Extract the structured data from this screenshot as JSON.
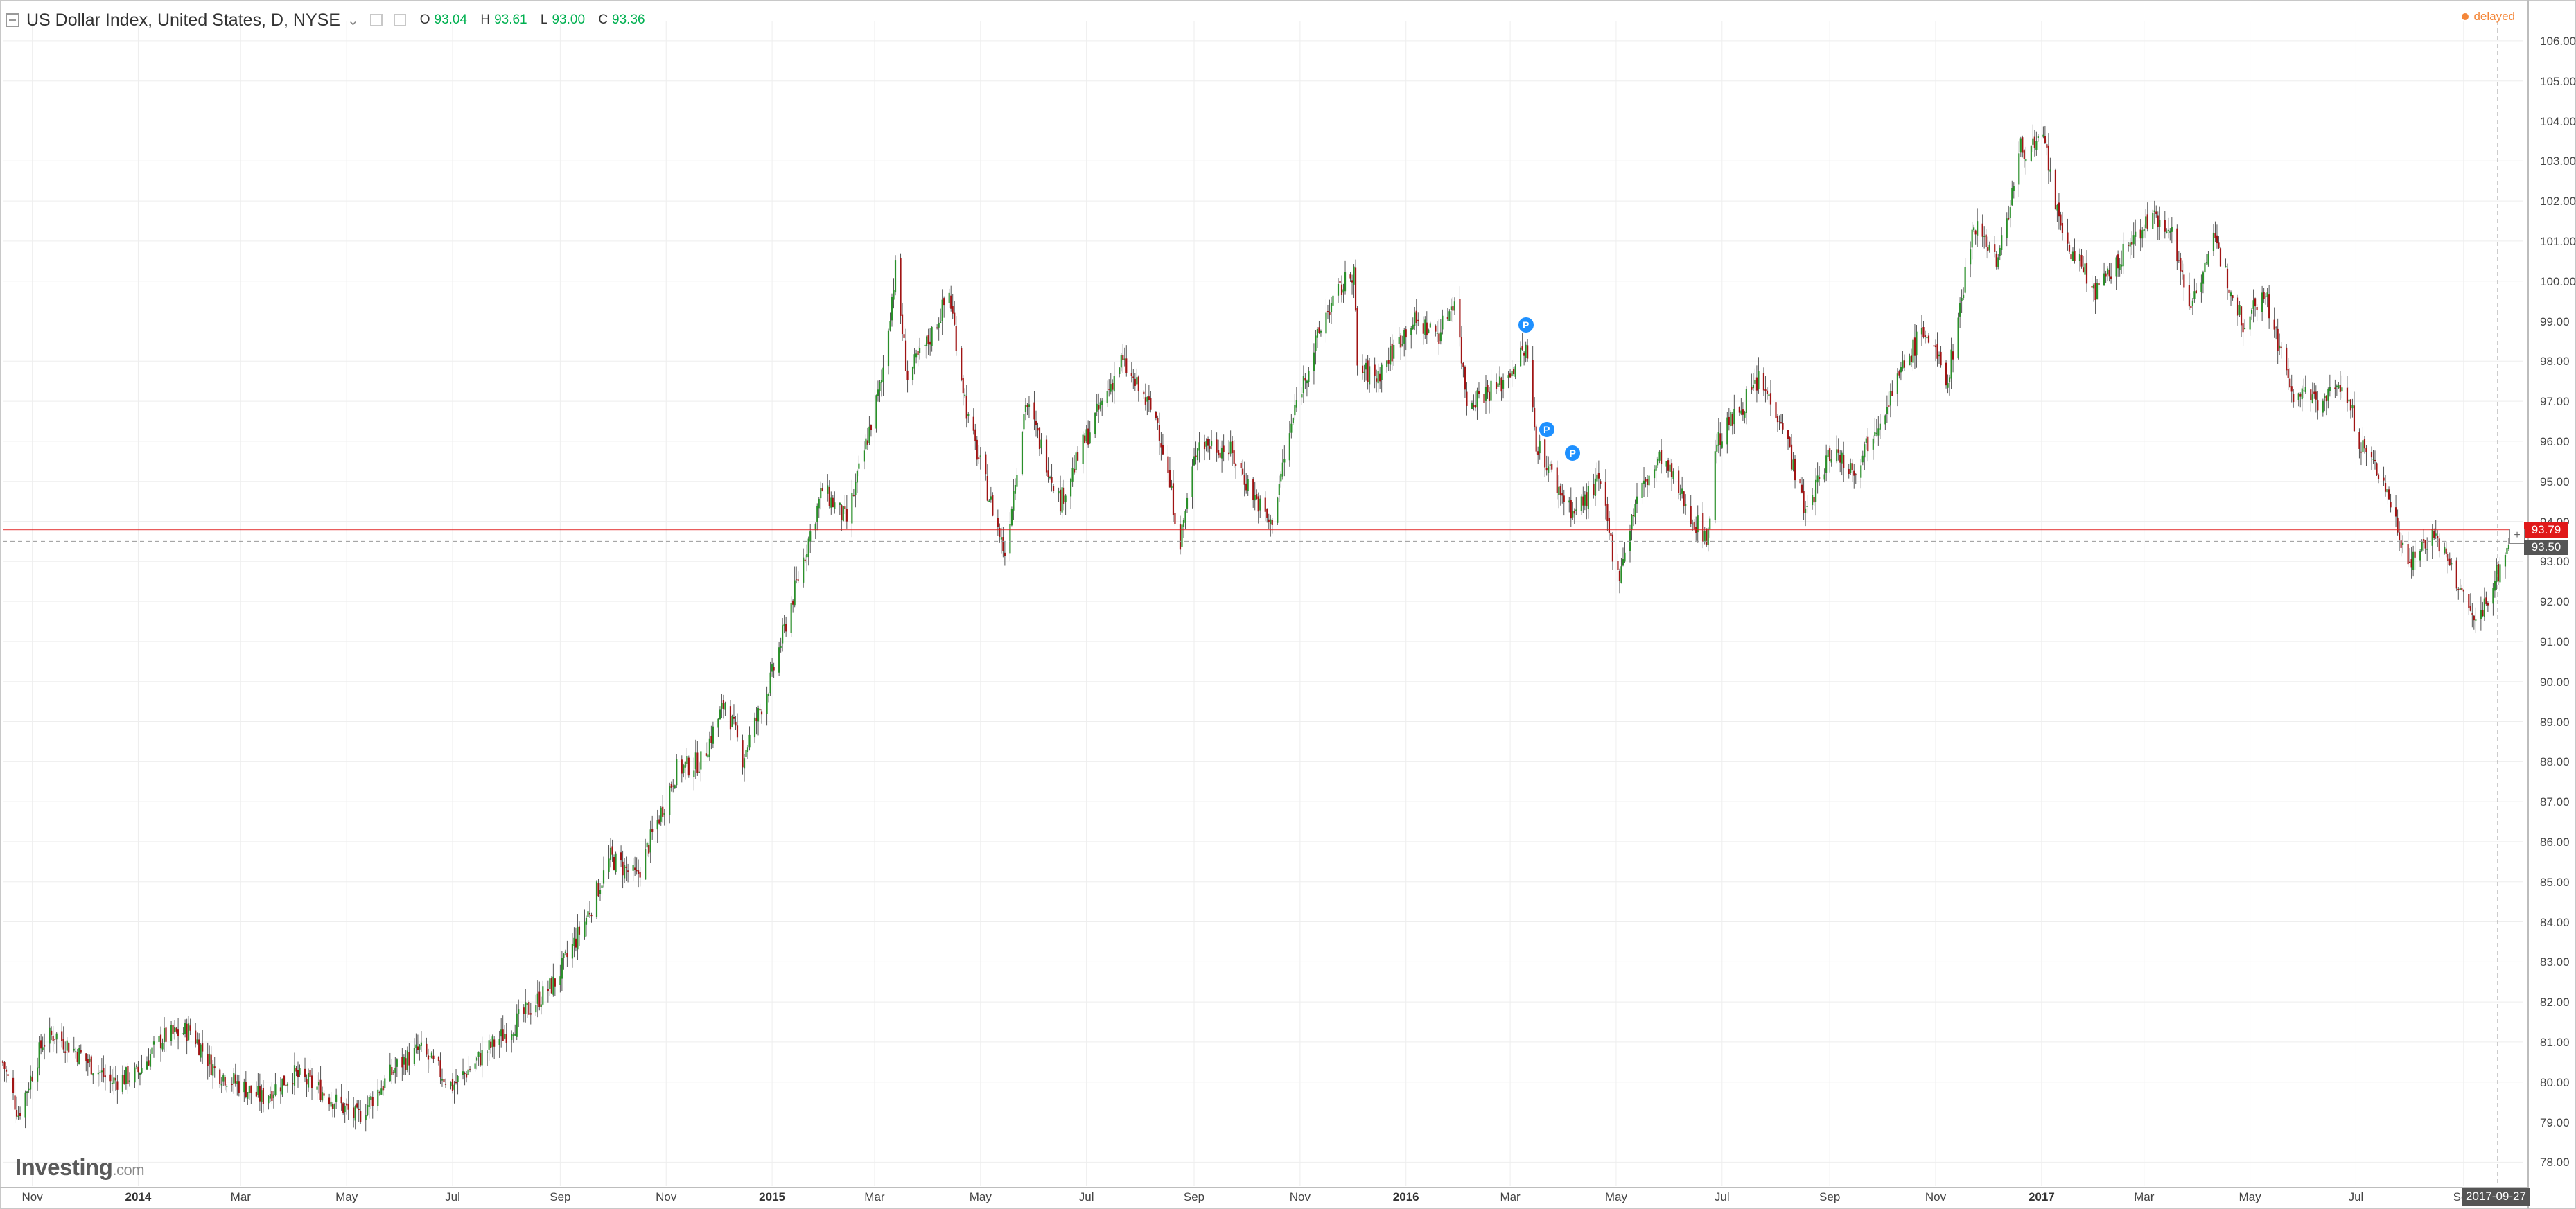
{
  "header": {
    "title": "US Dollar Index, United States, D, NYSE",
    "ohlc": {
      "o_label": "O",
      "o": "93.04",
      "h_label": "H",
      "h": "93.61",
      "l_label": "L",
      "l": "93.00",
      "c_label": "C",
      "c": "93.36"
    },
    "status": "delayed"
  },
  "brand": {
    "name": "Investing",
    "suffix": ".com"
  },
  "colors": {
    "up": "#2a8f2a",
    "down": "#a01414",
    "wick": "#555555",
    "grid": "#eeeeee",
    "current_price": "#e0191a",
    "last_price": "#555555",
    "delayed": "#f4873a",
    "event": "#1e90ff"
  },
  "price_tags": {
    "current": "93.79",
    "last": "93.50"
  },
  "date_tag": "2017-09-27",
  "event_markers": [
    {
      "label": "P",
      "date": "2016-03-10",
      "price": 98.9
    },
    {
      "label": "P",
      "date": "2016-03-22",
      "price": 96.3
    },
    {
      "label": "P",
      "date": "2016-04-06",
      "price": 95.7
    }
  ],
  "chart_data": {
    "type": "candlestick",
    "title": "US Dollar Index, United States, D, NYSE",
    "xlabel": "",
    "ylabel": "",
    "ylim": [
      77.4,
      106.5
    ],
    "yticks": [
      "78.00",
      "79.00",
      "80.00",
      "81.00",
      "82.00",
      "83.00",
      "84.00",
      "85.00",
      "86.00",
      "87.00",
      "88.00",
      "89.00",
      "90.00",
      "91.00",
      "92.00",
      "93.00",
      "94.00",
      "95.00",
      "96.00",
      "97.00",
      "98.00",
      "99.00",
      "100.00",
      "101.00",
      "102.00",
      "103.00",
      "104.00",
      "105.00",
      "106.00"
    ],
    "xlim": [
      "2013-10-15",
      "2017-10-05"
    ],
    "xticks": [
      {
        "label": "Nov",
        "date": "2013-11-01",
        "major": false
      },
      {
        "label": "2014",
        "date": "2014-01-01",
        "major": true
      },
      {
        "label": "Mar",
        "date": "2014-03-01",
        "major": false
      },
      {
        "label": "May",
        "date": "2014-05-01",
        "major": false
      },
      {
        "label": "Jul",
        "date": "2014-07-01",
        "major": false
      },
      {
        "label": "Sep",
        "date": "2014-09-01",
        "major": false
      },
      {
        "label": "Nov",
        "date": "2014-11-01",
        "major": false
      },
      {
        "label": "2015",
        "date": "2015-01-01",
        "major": true
      },
      {
        "label": "Mar",
        "date": "2015-03-01",
        "major": false
      },
      {
        "label": "May",
        "date": "2015-05-01",
        "major": false
      },
      {
        "label": "Jul",
        "date": "2015-07-01",
        "major": false
      },
      {
        "label": "Sep",
        "date": "2015-09-01",
        "major": false
      },
      {
        "label": "Nov",
        "date": "2015-11-01",
        "major": false
      },
      {
        "label": "2016",
        "date": "2016-01-01",
        "major": true
      },
      {
        "label": "Mar",
        "date": "2016-03-01",
        "major": false
      },
      {
        "label": "May",
        "date": "2016-05-01",
        "major": false
      },
      {
        "label": "Jul",
        "date": "2016-07-01",
        "major": false
      },
      {
        "label": "Sep",
        "date": "2016-09-01",
        "major": false
      },
      {
        "label": "Nov",
        "date": "2016-11-01",
        "major": false
      },
      {
        "label": "2017",
        "date": "2017-01-01",
        "major": true
      },
      {
        "label": "Mar",
        "date": "2017-03-01",
        "major": false
      },
      {
        "label": "May",
        "date": "2017-05-01",
        "major": false
      },
      {
        "label": "Jul",
        "date": "2017-07-01",
        "major": false
      },
      {
        "label": "Sep",
        "date": "2017-09-01",
        "major": false
      }
    ],
    "series": [
      {
        "name": "",
        "points": [
          [
            "2013-10-15",
            80.5
          ],
          [
            "2013-10-24",
            79.2
          ],
          [
            "2013-11-07",
            81.0
          ],
          [
            "2013-11-14",
            81.2
          ],
          [
            "2013-11-28",
            80.7
          ],
          [
            "2013-12-16",
            80.0
          ],
          [
            "2013-12-31",
            80.2
          ],
          [
            "2014-01-15",
            81.1
          ],
          [
            "2014-01-31",
            81.3
          ],
          [
            "2014-02-14",
            80.3
          ],
          [
            "2014-03-13",
            79.6
          ],
          [
            "2014-03-31",
            80.2
          ],
          [
            "2014-04-16",
            79.8
          ],
          [
            "2014-05-07",
            79.1
          ],
          [
            "2014-05-30",
            80.4
          ],
          [
            "2014-06-12",
            80.8
          ],
          [
            "2014-07-01",
            79.9
          ],
          [
            "2014-07-21",
            80.8
          ],
          [
            "2014-08-07",
            81.5
          ],
          [
            "2014-08-29",
            82.5
          ],
          [
            "2014-09-15",
            84.0
          ],
          [
            "2014-09-30",
            85.6
          ],
          [
            "2014-10-15",
            85.1
          ],
          [
            "2014-11-07",
            87.8
          ],
          [
            "2014-11-21",
            88.0
          ],
          [
            "2014-12-05",
            89.5
          ],
          [
            "2014-12-15",
            88.1
          ],
          [
            "2014-12-31",
            90.0
          ],
          [
            "2015-01-16",
            92.6
          ],
          [
            "2015-01-30",
            94.8
          ],
          [
            "2015-02-13",
            94.0
          ],
          [
            "2015-03-05",
            97.5
          ],
          [
            "2015-03-13",
            100.3
          ],
          [
            "2015-03-20",
            97.6
          ],
          [
            "2015-04-01",
            98.5
          ],
          [
            "2015-04-13",
            99.7
          ],
          [
            "2015-04-24",
            96.5
          ],
          [
            "2015-05-15",
            93.2
          ],
          [
            "2015-05-27",
            97.0
          ],
          [
            "2015-06-16",
            94.5
          ],
          [
            "2015-06-30",
            96.0
          ],
          [
            "2015-07-21",
            98.0
          ],
          [
            "2015-08-11",
            96.5
          ],
          [
            "2015-08-24",
            93.5
          ],
          [
            "2015-09-03",
            96.0
          ],
          [
            "2015-09-21",
            95.8
          ],
          [
            "2015-10-15",
            93.9
          ],
          [
            "2015-10-30",
            97.0
          ],
          [
            "2015-11-16",
            99.2
          ],
          [
            "2015-12-02",
            100.3
          ],
          [
            "2015-12-04",
            97.8
          ],
          [
            "2015-12-15",
            97.6
          ],
          [
            "2016-01-04",
            99.0
          ],
          [
            "2016-01-20",
            98.7
          ],
          [
            "2016-01-29",
            99.6
          ],
          [
            "2016-02-05",
            97.0
          ],
          [
            "2016-02-24",
            97.4
          ],
          [
            "2016-03-10",
            98.3
          ],
          [
            "2016-03-16",
            96.0
          ],
          [
            "2016-03-29",
            94.8
          ],
          [
            "2016-04-07",
            94.2
          ],
          [
            "2016-04-21",
            95.0
          ],
          [
            "2016-05-02",
            92.6
          ],
          [
            "2016-05-13",
            94.6
          ],
          [
            "2016-05-27",
            95.6
          ],
          [
            "2016-06-15",
            94.0
          ],
          [
            "2016-06-23",
            93.6
          ],
          [
            "2016-06-27",
            95.9
          ],
          [
            "2016-07-22",
            97.5
          ],
          [
            "2016-08-04",
            96.6
          ],
          [
            "2016-08-18",
            94.2
          ],
          [
            "2016-09-02",
            95.8
          ],
          [
            "2016-09-15",
            95.3
          ],
          [
            "2016-10-13",
            97.8
          ],
          [
            "2016-10-25",
            98.8
          ],
          [
            "2016-11-08",
            97.5
          ],
          [
            "2016-11-23",
            101.5
          ],
          [
            "2016-12-07",
            100.5
          ],
          [
            "2016-12-20",
            103.3
          ],
          [
            "2017-01-03",
            103.4
          ],
          [
            "2017-01-12",
            101.2
          ],
          [
            "2017-02-02",
            99.7
          ],
          [
            "2017-02-16",
            100.6
          ],
          [
            "2017-03-02",
            101.5
          ],
          [
            "2017-03-15",
            101.5
          ],
          [
            "2017-03-27",
            99.4
          ],
          [
            "2017-04-10",
            101.0
          ],
          [
            "2017-04-27",
            99.0
          ],
          [
            "2017-05-09",
            99.8
          ],
          [
            "2017-05-25",
            97.2
          ],
          [
            "2017-06-13",
            97.0
          ],
          [
            "2017-06-23",
            97.5
          ],
          [
            "2017-07-04",
            95.9
          ],
          [
            "2017-07-17",
            95.0
          ],
          [
            "2017-07-31",
            93.0
          ],
          [
            "2017-08-15",
            93.7
          ],
          [
            "2017-08-29",
            92.4
          ],
          [
            "2017-09-08",
            91.4
          ],
          [
            "2017-09-27",
            93.4
          ]
        ]
      }
    ],
    "current_price": 93.79,
    "last_price": 93.5,
    "grid": true,
    "legend": "none"
  }
}
